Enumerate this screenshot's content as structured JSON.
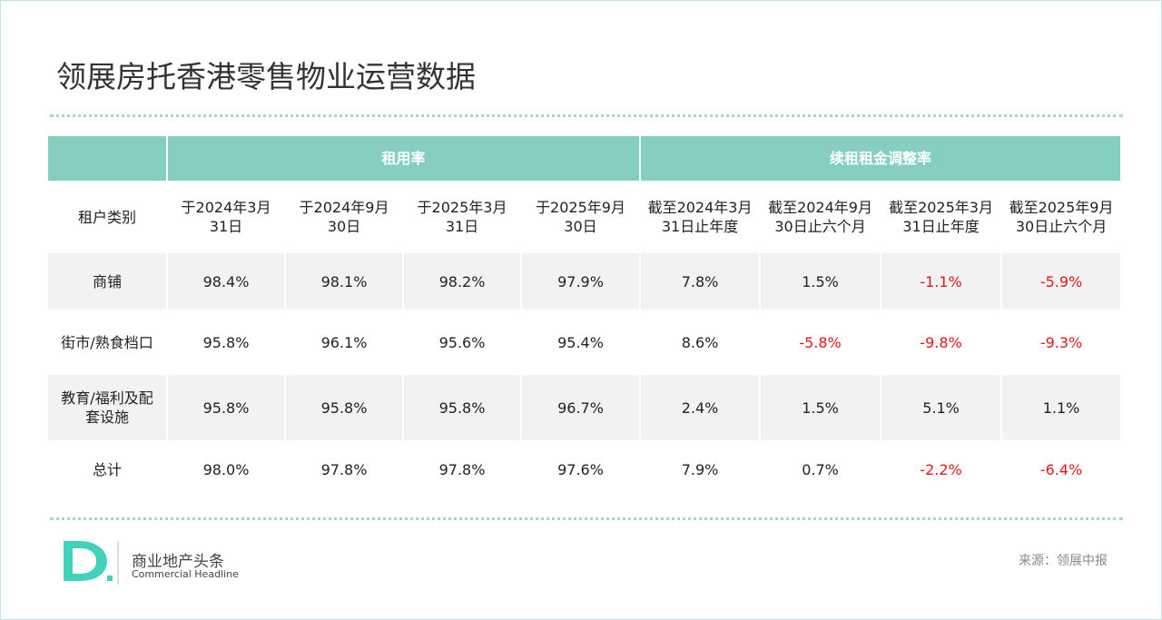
{
  "header": {
    "title": "领展房托香港零售物业运营数据"
  },
  "table": {
    "groups": [
      "租用率",
      "续租租金调整率"
    ],
    "columns": [
      "租户类别",
      [
        "于2024年3月",
        "31日"
      ],
      [
        "于2024年9月",
        "30日"
      ],
      [
        "于2025年3月",
        "31日"
      ],
      [
        "于2025年9月",
        "30日"
      ],
      [
        "截至2024年3月",
        "31日止年度"
      ],
      [
        "截至2024年9月",
        "30日止六个月"
      ],
      [
        "截至2025年3月",
        "31日止年度"
      ],
      [
        "截至2025年9月",
        "30日止六个月"
      ]
    ],
    "rows": [
      [
        "商铺",
        "98.4%",
        "98.1%",
        "98.2%",
        "97.9%",
        "7.8%",
        "1.5%",
        "-1.1%",
        "-5.9%"
      ],
      [
        "街市/熟食档口",
        "95.8%",
        "96.1%",
        "95.6%",
        "95.4%",
        "8.6%",
        "-5.8%",
        "-9.8%",
        "-9.3%"
      ],
      [
        [
          "教育/福利及配",
          "套设施"
        ],
        "95.8%",
        "95.8%",
        "95.8%",
        "96.7%",
        "2.4%",
        "1.5%",
        "5.1%",
        "1.1%"
      ],
      [
        "总计",
        "98.0%",
        "97.8%",
        "97.8%",
        "97.6%",
        "7.9%",
        "0.7%",
        "-2.2%",
        "-6.4%"
      ]
    ]
  },
  "footer": {
    "brand": "商业地产头条",
    "brand_en": "Commercial Headline",
    "source": "来源：领展中报"
  }
}
